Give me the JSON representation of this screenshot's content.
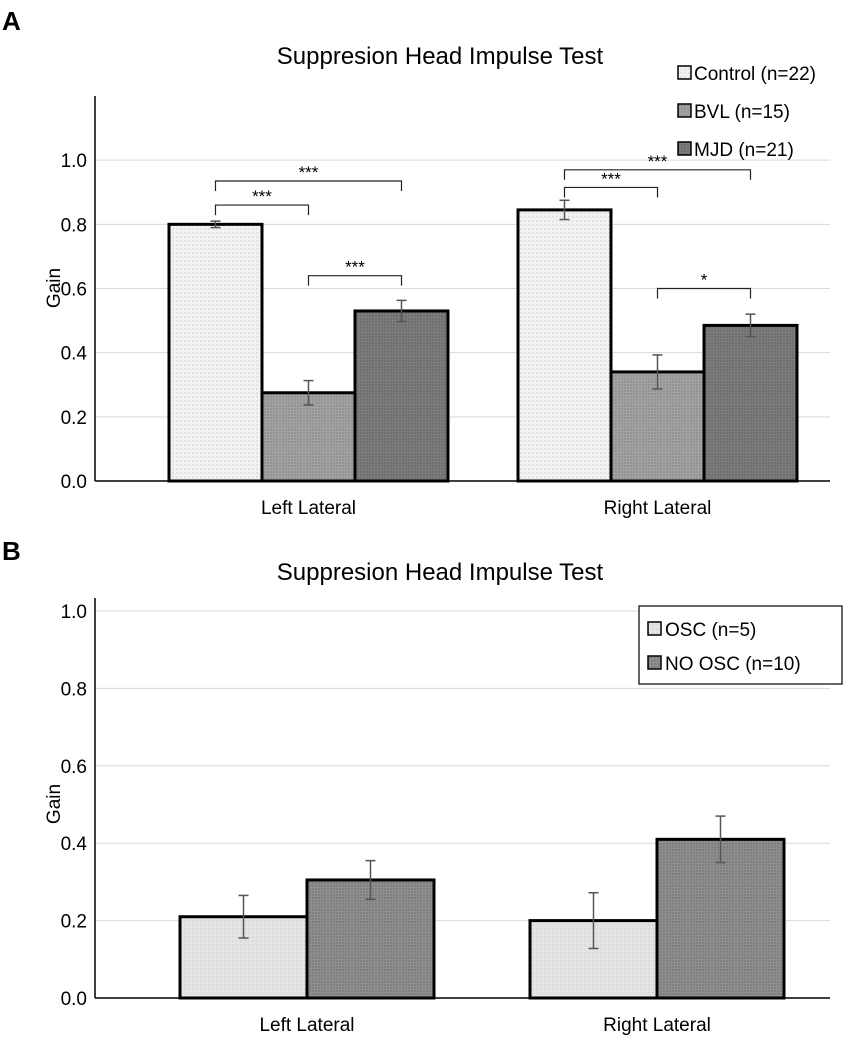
{
  "colors": {
    "control": "#efefef",
    "bvl": "#9a9a9a",
    "mjd": "#767676",
    "osc": "#e2e2e2",
    "no_osc": "#8a8a8a"
  },
  "chart_data": [
    {
      "panel": "A",
      "type": "bar",
      "title": "Suppresion Head Impulse Test",
      "ylabel": "Gain",
      "xlabel": "",
      "ylim": [
        0,
        1.2
      ],
      "yticks": [
        0.0,
        0.2,
        0.4,
        0.6,
        0.8,
        1.0
      ],
      "ytick_labels": [
        "0.0",
        "0.2",
        "0.4",
        "0.6",
        "0.8",
        "1.0"
      ],
      "categories": [
        "Left Lateral",
        "Right Lateral"
      ],
      "series": [
        {
          "name": "Control (n=22)",
          "key": "control",
          "values": [
            0.8,
            0.845
          ],
          "errors": [
            0.01,
            0.03
          ]
        },
        {
          "name": "BVL (n=15)",
          "key": "bvl",
          "values": [
            0.275,
            0.34
          ],
          "errors": [
            0.038,
            0.053
          ]
        },
        {
          "name": "MJD (n=21)",
          "key": "mjd",
          "values": [
            0.53,
            0.485
          ],
          "errors": [
            0.033,
            0.035
          ]
        }
      ],
      "legend": "top-right",
      "significance": [
        {
          "category": 0,
          "from": 0,
          "to": 1,
          "y": 0.86,
          "label": "***"
        },
        {
          "category": 0,
          "from": 0,
          "to": 2,
          "y": 0.935,
          "label": "***"
        },
        {
          "category": 0,
          "from": 1,
          "to": 2,
          "y": 0.64,
          "label": "***"
        },
        {
          "category": 1,
          "from": 0,
          "to": 1,
          "y": 0.915,
          "label": "***"
        },
        {
          "category": 1,
          "from": 0,
          "to": 2,
          "y": 0.97,
          "label": "***"
        },
        {
          "category": 1,
          "from": 1,
          "to": 2,
          "y": 0.6,
          "label": "*"
        }
      ]
    },
    {
      "panel": "B",
      "type": "bar",
      "title": "Suppresion Head Impulse Test",
      "ylabel": "Gain",
      "xlabel": "",
      "ylim": [
        0,
        1.0
      ],
      "yticks": [
        0.0,
        0.2,
        0.4,
        0.6,
        0.8,
        1.0
      ],
      "ytick_labels": [
        "0.0",
        "0.2",
        "0.4",
        "0.6",
        "0.8",
        "1.0"
      ],
      "categories": [
        "Left Lateral",
        "Right Lateral"
      ],
      "series": [
        {
          "name": "OSC (n=5)",
          "key": "osc",
          "values": [
            0.21,
            0.2
          ],
          "errors": [
            0.055,
            0.072
          ]
        },
        {
          "name": "NO OSC (n=10)",
          "key": "no_osc",
          "values": [
            0.305,
            0.41
          ],
          "errors": [
            0.05,
            0.06
          ]
        }
      ],
      "legend": "top-right",
      "significance": []
    }
  ]
}
